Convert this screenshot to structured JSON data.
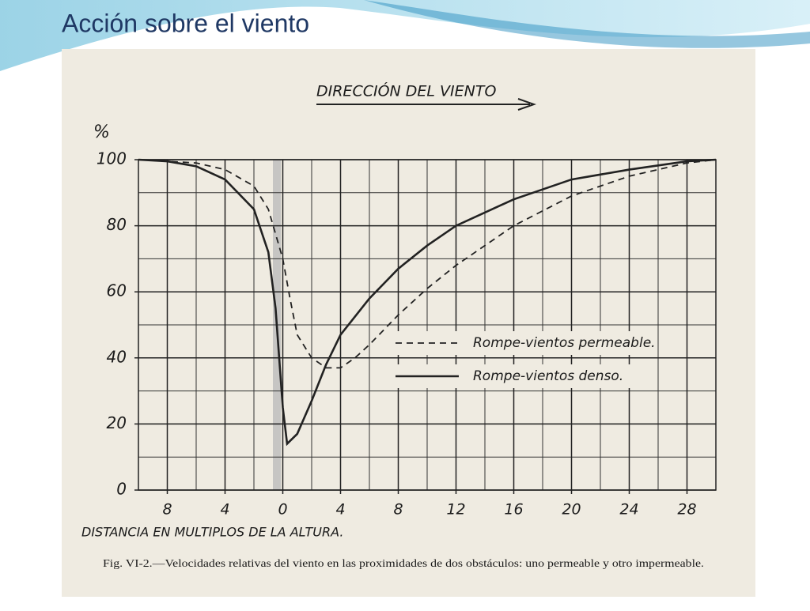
{
  "slide_title": "Acción sobre el viento",
  "chart_data": {
    "type": "line",
    "title": "Fig. VI-2.—Velocidades relativas del viento en las proximidades de dos obstáculos: uno permeable y otro impermeable.",
    "annotation": "DIRECCIÓN DEL VIENTO",
    "y_label": "%",
    "x_label": "DISTANCIA EN MULTIPLOS DE LA ALTURA.",
    "xlim": [
      -10,
      30
    ],
    "ylim": [
      0,
      100
    ],
    "xticks": [
      {
        "value": -8,
        "label": "8"
      },
      {
        "value": -4,
        "label": "4"
      },
      0,
      {
        "value": 4,
        "label": "4"
      },
      8,
      12,
      16,
      20,
      24,
      28
    ],
    "yticks": [
      0,
      20,
      40,
      60,
      80,
      100
    ],
    "grid": true,
    "series": [
      {
        "name": "Rompe-vientos permeable.",
        "color": "#222222",
        "style": "dashed",
        "x": [
          -10,
          -6,
          -4,
          -2,
          -1,
          0,
          0.5,
          1,
          2,
          3,
          4,
          5,
          6,
          8,
          10,
          12,
          16,
          20,
          24,
          28,
          30
        ],
        "values": [
          100,
          99,
          97,
          92,
          85,
          70,
          58,
          47,
          40,
          37,
          37,
          40,
          44,
          53,
          61,
          68,
          80,
          89,
          95,
          99,
          100
        ]
      },
      {
        "name": "Rompe-vientos denso.",
        "color": "#222222",
        "style": "solid",
        "x": [
          -10,
          -8,
          -6,
          -4,
          -2,
          -1,
          -0.5,
          0,
          0.3,
          1,
          2,
          3,
          4,
          6,
          8,
          10,
          12,
          16,
          20,
          24,
          28,
          30
        ],
        "values": [
          100,
          99.5,
          98,
          94,
          85,
          72,
          55,
          25,
          14,
          17,
          27,
          38,
          47,
          58,
          67,
          74,
          80,
          88,
          94,
          97,
          99.5,
          100
        ]
      }
    ]
  }
}
